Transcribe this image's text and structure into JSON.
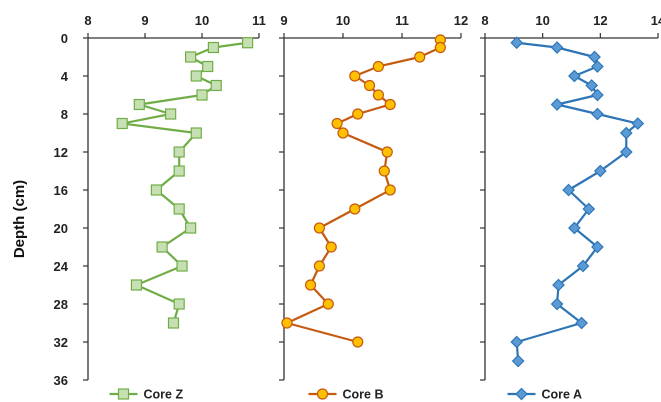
{
  "chart_data": [
    {
      "type": "line",
      "name": "Core Z",
      "legend": "Core Z",
      "color": "#70ad47",
      "marker_fill": "#c6e0b4",
      "marker": "square",
      "xlim": [
        8,
        11
      ],
      "xticks": [
        8,
        9,
        10,
        11
      ],
      "ylim": [
        0,
        36
      ],
      "yticks": [
        0,
        4,
        8,
        12,
        16,
        20,
        24,
        28,
        32,
        36
      ],
      "ylabel": "Depth (cm)",
      "points": [
        {
          "x": 10.8,
          "y": 0.5
        },
        {
          "x": 10.2,
          "y": 1
        },
        {
          "x": 9.8,
          "y": 2
        },
        {
          "x": 10.1,
          "y": 3
        },
        {
          "x": 9.9,
          "y": 4
        },
        {
          "x": 10.25,
          "y": 5
        },
        {
          "x": 10.0,
          "y": 6
        },
        {
          "x": 8.9,
          "y": 7
        },
        {
          "x": 9.45,
          "y": 8
        },
        {
          "x": 8.6,
          "y": 9
        },
        {
          "x": 9.9,
          "y": 10
        },
        {
          "x": 9.6,
          "y": 12
        },
        {
          "x": 9.6,
          "y": 14
        },
        {
          "x": 9.2,
          "y": 16
        },
        {
          "x": 9.6,
          "y": 18
        },
        {
          "x": 9.8,
          "y": 20
        },
        {
          "x": 9.3,
          "y": 22
        },
        {
          "x": 9.65,
          "y": 24
        },
        {
          "x": 8.85,
          "y": 26
        },
        {
          "x": 9.6,
          "y": 28
        },
        {
          "x": 9.5,
          "y": 30
        }
      ]
    },
    {
      "type": "line",
      "name": "Core B",
      "legend": "Core B",
      "color": "#c55a11",
      "marker_fill": "#ffc000",
      "marker": "circle",
      "xlim": [
        9,
        12
      ],
      "xticks": [
        9,
        10,
        11,
        12
      ],
      "ylim": [
        0,
        36
      ],
      "points": [
        {
          "x": 11.65,
          "y": 0.2
        },
        {
          "x": 11.65,
          "y": 1
        },
        {
          "x": 11.3,
          "y": 2
        },
        {
          "x": 10.6,
          "y": 3
        },
        {
          "x": 10.2,
          "y": 4
        },
        {
          "x": 10.45,
          "y": 5
        },
        {
          "x": 10.6,
          "y": 6
        },
        {
          "x": 10.8,
          "y": 7
        },
        {
          "x": 10.25,
          "y": 8
        },
        {
          "x": 9.9,
          "y": 9
        },
        {
          "x": 10.0,
          "y": 10
        },
        {
          "x": 10.75,
          "y": 12
        },
        {
          "x": 10.7,
          "y": 14
        },
        {
          "x": 10.8,
          "y": 16
        },
        {
          "x": 10.2,
          "y": 18
        },
        {
          "x": 9.6,
          "y": 20
        },
        {
          "x": 9.8,
          "y": 22
        },
        {
          "x": 9.6,
          "y": 24
        },
        {
          "x": 9.45,
          "y": 26
        },
        {
          "x": 9.75,
          "y": 28
        },
        {
          "x": 9.05,
          "y": 30
        },
        {
          "x": 10.25,
          "y": 32
        }
      ]
    },
    {
      "type": "line",
      "name": "Core A",
      "legend": "Core A",
      "color": "#2e75b6",
      "marker_fill": "#5b9bd5",
      "marker": "diamond",
      "xlim": [
        8,
        14
      ],
      "xticks": [
        8,
        10,
        12,
        14
      ],
      "ylim": [
        0,
        36
      ],
      "points": [
        {
          "x": 9.1,
          "y": 0.5
        },
        {
          "x": 10.5,
          "y": 1
        },
        {
          "x": 11.8,
          "y": 2
        },
        {
          "x": 11.9,
          "y": 3
        },
        {
          "x": 11.1,
          "y": 4
        },
        {
          "x": 11.7,
          "y": 5
        },
        {
          "x": 11.9,
          "y": 6
        },
        {
          "x": 10.5,
          "y": 7
        },
        {
          "x": 11.9,
          "y": 8
        },
        {
          "x": 13.3,
          "y": 9
        },
        {
          "x": 12.9,
          "y": 10
        },
        {
          "x": 12.9,
          "y": 12
        },
        {
          "x": 12.0,
          "y": 14
        },
        {
          "x": 10.9,
          "y": 16
        },
        {
          "x": 11.6,
          "y": 18
        },
        {
          "x": 11.1,
          "y": 20
        },
        {
          "x": 11.9,
          "y": 22
        },
        {
          "x": 11.4,
          "y": 24
        },
        {
          "x": 10.55,
          "y": 26
        },
        {
          "x": 10.5,
          "y": 28
        },
        {
          "x": 11.35,
          "y": 30
        },
        {
          "x": 9.1,
          "y": 32
        },
        {
          "x": 9.15,
          "y": 34
        }
      ]
    }
  ]
}
